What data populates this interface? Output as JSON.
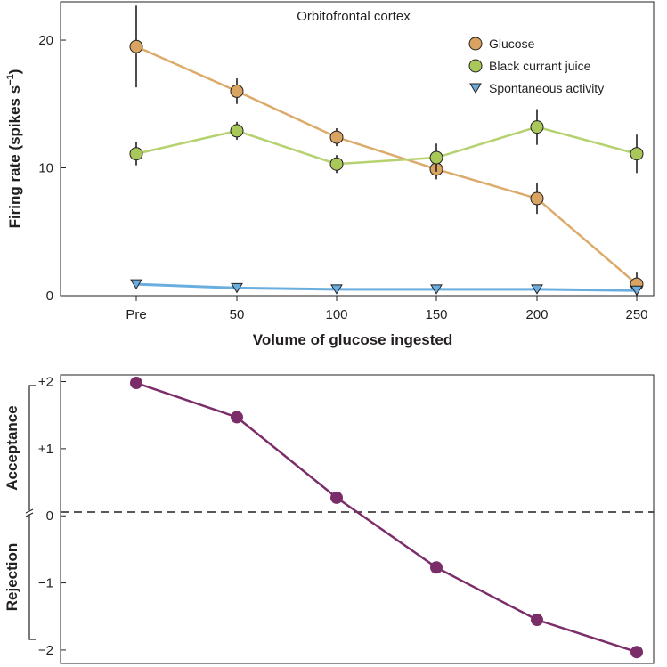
{
  "chart_data": [
    {
      "type": "line",
      "title": "Orbitofrontal cortex",
      "xlabel": "Volume of glucose ingested",
      "ylabel_main": "Firing rate (spikes s",
      "ylabel_sup": "−1",
      "ylabel_close": ")",
      "categories": [
        "Pre",
        "50",
        "100",
        "150",
        "200",
        "250"
      ],
      "ylim": [
        0,
        23
      ],
      "yticks": [
        {
          "value": 0,
          "label": "0"
        },
        {
          "value": 10,
          "label": "10"
        },
        {
          "value": 20,
          "label": "20"
        }
      ],
      "series": [
        {
          "name": "Glucose",
          "marker": "circle",
          "fill": "#d9a461",
          "line": "#dcab6b",
          "values": [
            19.5,
            16.0,
            12.4,
            9.9,
            7.6,
            0.9
          ],
          "errors": [
            3.2,
            1.0,
            0.7,
            0.8,
            1.2,
            0.9
          ]
        },
        {
          "name": "Black currant juice",
          "marker": "circle",
          "fill": "#a9c85a",
          "line": "#b6d16f",
          "values": [
            11.1,
            12.9,
            10.3,
            10.8,
            13.2,
            11.1
          ],
          "errors": [
            0.9,
            0.7,
            0.7,
            1.1,
            1.4,
            1.5
          ]
        },
        {
          "name": "Spontaneous activity",
          "marker": "triangle",
          "fill": "#6aaee0",
          "line": "#6aaee0",
          "values": [
            0.9,
            0.6,
            0.5,
            0.5,
            0.5,
            0.4
          ],
          "errors": [
            0.2,
            0.2,
            0.2,
            0.2,
            0.2,
            0.2
          ]
        }
      ]
    },
    {
      "type": "line",
      "title": "",
      "xlabel": "",
      "categories": [
        "Pre",
        "50",
        "100",
        "150",
        "200",
        "250"
      ],
      "ylim": [
        -2.2,
        2.1
      ],
      "yticks": [
        {
          "value": 2,
          "label": "+2"
        },
        {
          "value": 1,
          "label": "+1"
        },
        {
          "value": 0,
          "label": "0"
        },
        {
          "value": -1,
          "label": "−1"
        },
        {
          "value": -2,
          "label": "−2"
        }
      ],
      "side_labels": {
        "upper": "Acceptance",
        "lower": "Rejection"
      },
      "series": [
        {
          "name": "Acceptance/Rejection",
          "color": "#7b2d6a",
          "values": [
            1.98,
            1.47,
            0.27,
            -0.77,
            -1.55,
            -2.03
          ]
        }
      ]
    }
  ]
}
